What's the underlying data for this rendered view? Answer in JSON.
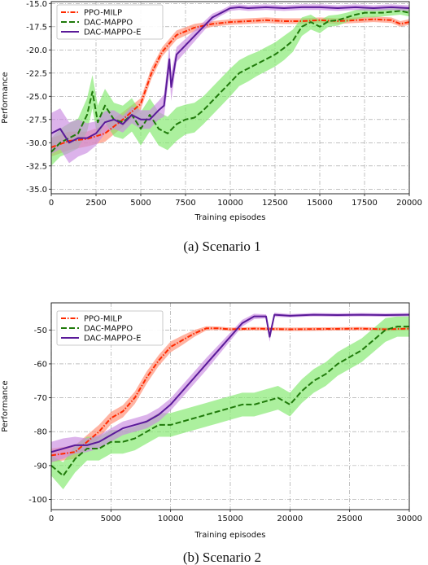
{
  "chart_data": [
    {
      "type": "line",
      "caption": "(a)  Scenario 1",
      "xlabel": "Training episodes",
      "ylabel": "Performance",
      "xlim": [
        0,
        20000
      ],
      "ylim": [
        -35.5,
        -14.8
      ],
      "xticks": [
        0,
        2500,
        5000,
        7500,
        10000,
        12500,
        15000,
        17500,
        20000
      ],
      "yticks": [
        -35.0,
        -32.5,
        -30.0,
        -27.5,
        -25.0,
        -22.5,
        -20.0,
        -17.5,
        -15.0
      ],
      "grid": true,
      "legend_position": "top-left",
      "series": [
        {
          "name": "PPO-MILP",
          "color": "#ff2a00",
          "band_color": "#ff8a70",
          "dash": "6,2,1.5,2",
          "x": [
            0,
            1000,
            2000,
            3000,
            4000,
            5000,
            5600,
            6200,
            7000,
            8000,
            9000,
            10000,
            11000,
            12000,
            13000,
            14000,
            15000,
            16000,
            17000,
            18000,
            19000,
            19500,
            20000
          ],
          "y": [
            -30.5,
            -29.8,
            -29.6,
            -29.0,
            -27.5,
            -25.8,
            -22.5,
            -20.2,
            -18.4,
            -17.6,
            -17.2,
            -17.0,
            -16.9,
            -16.8,
            -16.9,
            -16.9,
            -16.8,
            -16.9,
            -16.8,
            -16.7,
            -16.8,
            -17.2,
            -17.0
          ],
          "spread": [
            1.0,
            1.0,
            0.8,
            0.9,
            0.8,
            0.6,
            0.6,
            0.5,
            0.5,
            0.4,
            0.3,
            0.3,
            0.3,
            0.3,
            0.3,
            0.3,
            0.3,
            0.3,
            0.3,
            0.3,
            0.3,
            0.3,
            0.3
          ]
        },
        {
          "name": "DAC-MAPPO",
          "color": "#1f7a0a",
          "band_color": "#7fe86a",
          "dash": "7,3",
          "x": [
            0,
            500,
            1000,
            1500,
            2000,
            2300,
            2600,
            3000,
            3500,
            4000,
            4500,
            5000,
            5500,
            6000,
            6500,
            7000,
            7500,
            8000,
            8500,
            9000,
            9500,
            10000,
            10500,
            11000,
            11500,
            12000,
            12500,
            13000,
            13500,
            14000,
            14500,
            15000,
            15500,
            16000,
            16500,
            17000,
            17500,
            18000,
            18500,
            19000,
            19500,
            20000
          ],
          "y": [
            -31.0,
            -30.0,
            -29.5,
            -29.0,
            -27.0,
            -24.5,
            -27.8,
            -26.0,
            -27.5,
            -27.8,
            -27.0,
            -28.5,
            -27.0,
            -28.5,
            -29.0,
            -28.0,
            -27.5,
            -27.3,
            -26.5,
            -25.5,
            -24.5,
            -23.5,
            -22.5,
            -22.0,
            -21.5,
            -21.0,
            -20.5,
            -19.8,
            -19.0,
            -17.5,
            -17.0,
            -17.5,
            -16.9,
            -16.8,
            -16.5,
            -16.2,
            -16.0,
            -16.0,
            -16.0,
            -15.9,
            -15.8,
            -16.0
          ],
          "spread": [
            1.5,
            1.5,
            1.6,
            1.6,
            1.8,
            1.8,
            1.8,
            1.8,
            1.8,
            1.8,
            1.8,
            1.8,
            1.8,
            1.8,
            1.8,
            1.8,
            1.6,
            1.6,
            1.5,
            1.5,
            1.5,
            1.5,
            1.4,
            1.4,
            1.3,
            1.3,
            1.3,
            1.3,
            1.2,
            1.0,
            0.8,
            0.7,
            0.6,
            0.6,
            0.5,
            0.5,
            0.5,
            0.5,
            0.4,
            0.4,
            0.4,
            0.4
          ]
        },
        {
          "name": "DAC-MAPPO-E",
          "color": "#5a1a99",
          "band_color": "#c98be0",
          "dash": "",
          "x": [
            0,
            500,
            1000,
            1500,
            2000,
            2500,
            3000,
            3500,
            4000,
            4500,
            5000,
            5500,
            6000,
            6300,
            6600,
            6700,
            7000,
            7500,
            8000,
            8500,
            9000,
            9500,
            10000,
            10500,
            11000,
            12000,
            13000,
            14000,
            15000,
            16000,
            17000,
            18000,
            19000,
            20000
          ],
          "y": [
            -29.0,
            -28.5,
            -30.0,
            -29.5,
            -29.5,
            -29.0,
            -27.8,
            -27.5,
            -28.0,
            -27.0,
            -27.5,
            -27.5,
            -26.5,
            -26.0,
            -21.0,
            -24.0,
            -20.5,
            -19.5,
            -18.5,
            -17.5,
            -16.5,
            -16.0,
            -15.5,
            -15.4,
            -15.5,
            -15.4,
            -15.5,
            -15.4,
            -15.4,
            -15.5,
            -15.4,
            -15.5,
            -15.4,
            -15.5
          ],
          "spread": [
            2.2,
            2.2,
            2.2,
            2.0,
            1.6,
            1.3,
            1.2,
            1.0,
            0.9,
            0.9,
            1.0,
            1.0,
            1.0,
            1.2,
            1.5,
            1.5,
            0.8,
            0.7,
            0.6,
            0.5,
            0.4,
            0.3,
            0.3,
            0.3,
            0.3,
            0.3,
            0.3,
            0.3,
            0.3,
            0.3,
            0.3,
            0.3,
            0.3,
            0.3
          ]
        }
      ]
    },
    {
      "type": "line",
      "caption": "(b)  Scenario 2",
      "xlabel": "Training episodes",
      "ylabel": "Performance",
      "xlim": [
        0,
        30000
      ],
      "ylim": [
        -103,
        -42
      ],
      "xticks": [
        0,
        5000,
        10000,
        15000,
        20000,
        25000,
        30000
      ],
      "yticks": [
        -100,
        -90,
        -80,
        -70,
        -60,
        -50
      ],
      "grid": true,
      "legend_position": "top-left",
      "series": [
        {
          "name": "PPO-MILP",
          "color": "#ff2a00",
          "band_color": "#ff8a70",
          "dash": "6,2,1.5,2",
          "x": [
            0,
            2000,
            4000,
            5000,
            6000,
            7000,
            8000,
            9000,
            10000,
            11000,
            12000,
            13000,
            14000,
            15000,
            17000,
            20000,
            23000,
            26000,
            28000,
            30000
          ],
          "y": [
            -87,
            -86,
            -80,
            -76,
            -74,
            -70,
            -64,
            -59,
            -55,
            -53,
            -51,
            -49.5,
            -49.5,
            -49.8,
            -49.6,
            -49.8,
            -49.7,
            -49.6,
            -49.8,
            -49.6
          ],
          "spread": [
            2.0,
            2.0,
            2.0,
            1.8,
            1.8,
            1.8,
            1.8,
            1.6,
            1.6,
            1.4,
            1.0,
            0.6,
            0.5,
            0.5,
            0.5,
            0.5,
            0.5,
            0.5,
            0.5,
            0.5
          ]
        },
        {
          "name": "DAC-MAPPO",
          "color": "#1f7a0a",
          "band_color": "#7fe86a",
          "dash": "7,3",
          "x": [
            0,
            1000,
            2000,
            3000,
            4000,
            5000,
            6000,
            7000,
            8000,
            9000,
            10000,
            11000,
            12000,
            13000,
            14000,
            15000,
            16000,
            17000,
            18000,
            19000,
            20000,
            21000,
            22000,
            23000,
            24000,
            25000,
            26000,
            27000,
            28000,
            29000,
            30000
          ],
          "y": [
            -90,
            -93,
            -88,
            -85,
            -85,
            -83,
            -83,
            -82,
            -80,
            -78,
            -78,
            -77,
            -76,
            -75,
            -74,
            -73,
            -72,
            -72,
            -71,
            -70,
            -72,
            -68,
            -65,
            -63,
            -60,
            -58,
            -56,
            -53,
            -50,
            -49,
            -49
          ],
          "spread": [
            3.0,
            4.0,
            4.0,
            3.5,
            3.5,
            3.5,
            3.5,
            3.5,
            3.5,
            3.5,
            3.5,
            3.5,
            3.5,
            3.5,
            3.5,
            3.5,
            3.5,
            3.5,
            3.5,
            3.5,
            3.5,
            3.5,
            3.5,
            3.5,
            3.5,
            3.5,
            3.5,
            3.5,
            3.5,
            3.0,
            3.0
          ]
        },
        {
          "name": "DAC-MAPPO-E",
          "color": "#5a1a99",
          "band_color": "#c98be0",
          "dash": "",
          "x": [
            0,
            1000,
            2000,
            3000,
            4000,
            5000,
            6000,
            7000,
            8000,
            9000,
            10000,
            11000,
            12000,
            13000,
            14000,
            15000,
            16000,
            17000,
            18000,
            18300,
            18700,
            20000,
            22000,
            24000,
            26000,
            28000,
            30000
          ],
          "y": [
            -86,
            -85,
            -84,
            -84,
            -83,
            -81,
            -79,
            -78,
            -77,
            -75,
            -72,
            -68,
            -64,
            -60,
            -56,
            -52,
            -48,
            -46,
            -46,
            -52,
            -45.5,
            -45.8,
            -45.5,
            -45.6,
            -45.5,
            -45.6,
            -45.5
          ],
          "spread": [
            3.0,
            3.0,
            2.5,
            2.0,
            2.0,
            2.0,
            2.0,
            2.0,
            2.0,
            2.0,
            1.8,
            1.8,
            1.8,
            1.8,
            1.5,
            1.2,
            1.0,
            0.8,
            0.6,
            1.5,
            0.6,
            0.5,
            0.5,
            0.5,
            0.5,
            0.5,
            0.5
          ]
        }
      ]
    }
  ]
}
